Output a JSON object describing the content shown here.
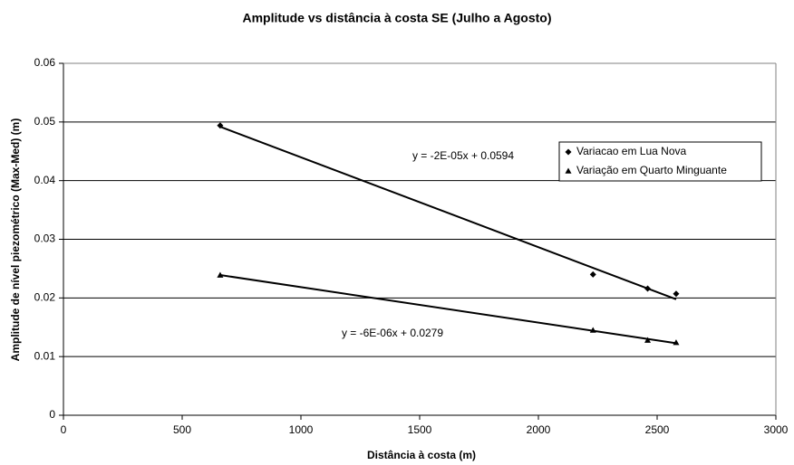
{
  "chart_data": {
    "type": "scatter",
    "title": "Amplitude vs distância à costa SE (Julho a Agosto)",
    "x_label": "Distância à costa (m)",
    "y_label": "Amplitude de nível piezométrico (Max-Med) (m)",
    "xlim": [
      0,
      3000
    ],
    "xticks": [
      0,
      500,
      1000,
      1500,
      2000,
      2500,
      3000
    ],
    "ylim": [
      0,
      0.06
    ],
    "yticks": [
      0,
      0.01,
      0.02,
      0.03,
      0.04,
      0.05,
      0.06
    ],
    "grid": true,
    "legend": "right",
    "series": [
      {
        "name": "Variacao em Lua Nova",
        "color": "#000000",
        "marker": "diamond",
        "x": [
          660,
          2230,
          2460,
          2580
        ],
        "values": [
          0.0494,
          0.024,
          0.0216,
          0.0207
        ],
        "trendline": "linear",
        "trendline_label": "y = -2E-05x + 0.0594"
      },
      {
        "name": "Variação em Quarto Minguante",
        "color": "#000000",
        "marker": "triangle",
        "x": [
          660,
          2230,
          2460,
          2580
        ],
        "values": [
          0.0239,
          0.0145,
          0.0128,
          0.0124
        ],
        "trendline": "linear",
        "trendline_label": "y = -6E-06x + 0.0279"
      }
    ]
  }
}
